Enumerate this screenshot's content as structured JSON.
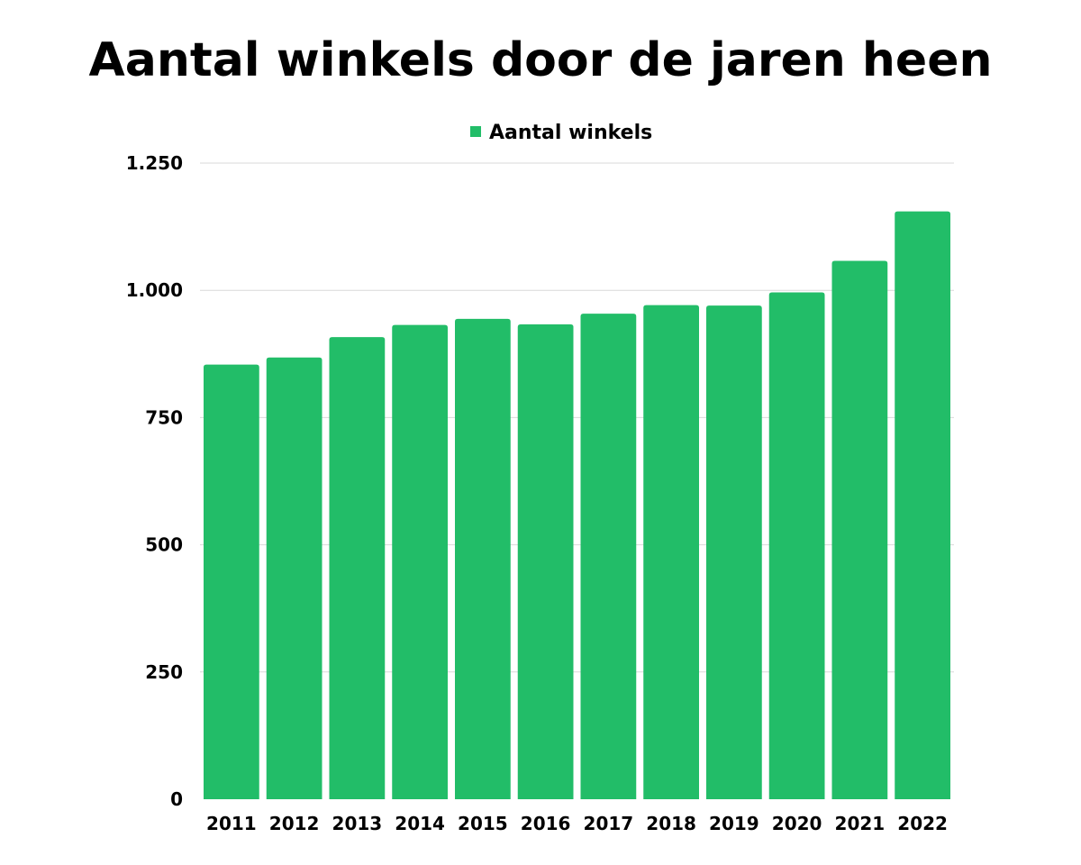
{
  "chart_data": {
    "type": "bar",
    "title": "Aantal winkels door de jaren heen",
    "xlabel": "",
    "ylabel": "",
    "categories": [
      "2011",
      "2012",
      "2013",
      "2014",
      "2015",
      "2016",
      "2017",
      "2018",
      "2019",
      "2020",
      "2021",
      "2022"
    ],
    "series": [
      {
        "name": "Aantal winkels",
        "color": "#22bd68",
        "values": [
          854,
          868,
          908,
          932,
          944,
          933,
          954,
          971,
          970,
          996,
          1058,
          1155
        ]
      }
    ],
    "ylim": [
      0,
      1250
    ],
    "yticks": [
      0,
      250,
      500,
      750,
      1000,
      1250
    ],
    "ytick_labels": [
      "0",
      "250",
      "500",
      "750",
      "1.000",
      "1.250"
    ],
    "grid": true,
    "legend_position": "top-center"
  }
}
